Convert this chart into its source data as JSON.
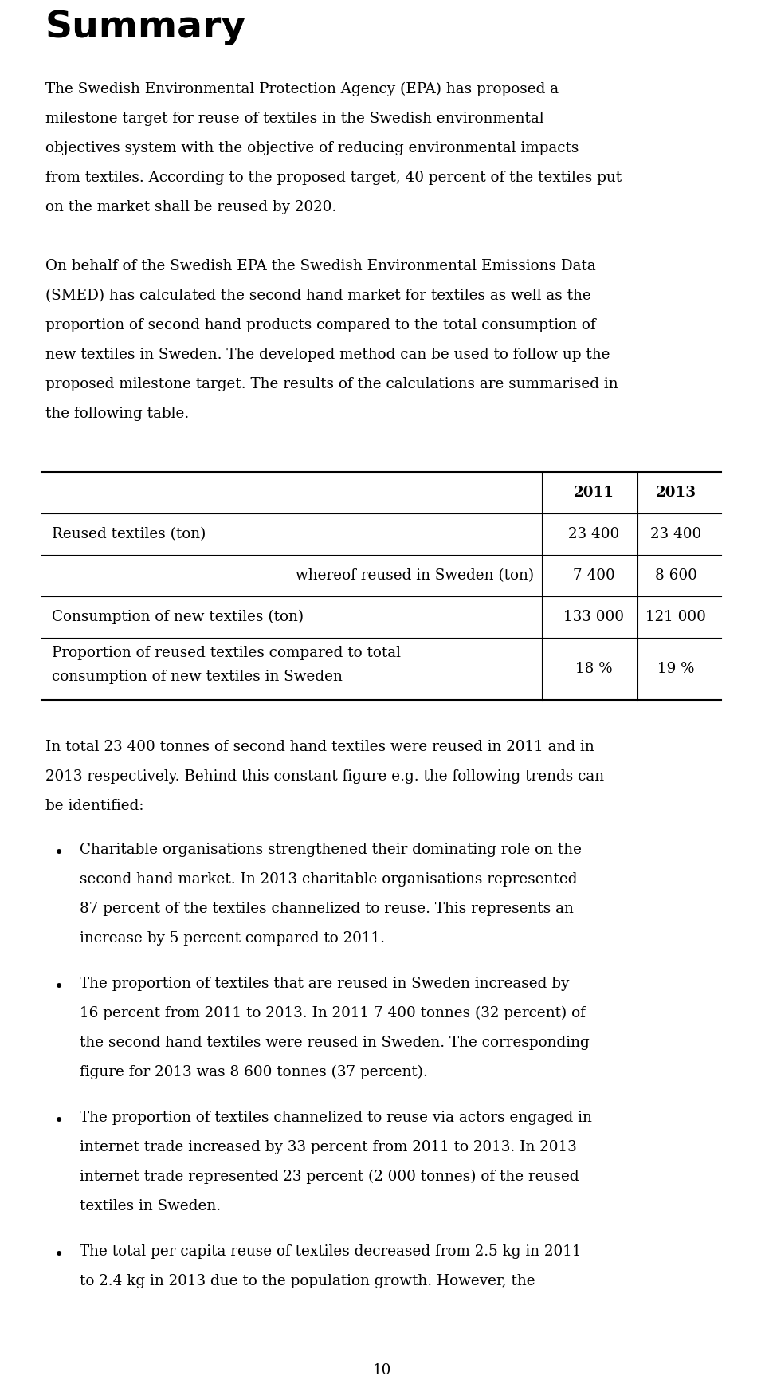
{
  "title": "Summary",
  "para1_lines": [
    "The Swedish Environmental Protection Agency (EPA) has proposed a",
    "milestone target for reuse of textiles in the Swedish environmental",
    "objectives system with the objective of reducing environmental impacts",
    "from textiles. According to the proposed target, 40 percent of the textiles put",
    "on the market shall be reused by 2020."
  ],
  "para2_lines": [
    "On behalf of the Swedish EPA the Swedish Environmental Emissions Data",
    "(SMED) has calculated the second hand market for textiles as well as the",
    "proportion of second hand products compared to the total consumption of",
    "new textiles in Sweden. The developed method can be used to follow up the",
    "proposed milestone target. The results of the calculations are summarised in",
    "the following table."
  ],
  "table_col2_header": "2011",
  "table_col3_header": "2013",
  "table_row1": [
    "Reused textiles (ton)",
    "23 400",
    "23 400"
  ],
  "table_row2_label": "whereof reused in Sweden (ton)",
  "table_row2_vals": [
    "7 400",
    "8 600"
  ],
  "table_row3": [
    "Consumption of new textiles (ton)",
    "133 000",
    "121 000"
  ],
  "table_row4_lines": [
    "Proportion of reused textiles compared to total",
    "consumption of new textiles in Sweden"
  ],
  "table_row4_vals": [
    "18 %",
    "19 %"
  ],
  "para3_lines": [
    "In total 23 400 tonnes of second hand textiles were reused in 2011 and in",
    "2013 respectively. Behind this constant figure e.g. the following trends can",
    "be identified:"
  ],
  "bullets": [
    [
      "Charitable organisations strengthened their dominating role on the",
      "second hand market. In 2013 charitable organisations represented",
      "87 percent of the textiles channelized to reuse. This represents an",
      "increase by 5 percent compared to 2011."
    ],
    [
      "The proportion of textiles that are reused in Sweden increased by",
      "16 percent from 2011 to 2013. In 2011 7 400 tonnes (32 percent) of",
      "the second hand textiles were reused in Sweden. The corresponding",
      "figure for 2013 was 8 600 tonnes (37 percent)."
    ],
    [
      "The proportion of textiles channelized to reuse via actors engaged in",
      "internet trade increased by 33 percent from 2011 to 2013. In 2013",
      "internet trade represented 23 percent (2 000 tonnes) of the reused",
      "textiles in Sweden."
    ],
    [
      "The total per capita reuse of textiles decreased from 2.5 kg in 2011",
      "to 2.4 kg in 2013 due to the population growth. However, the"
    ]
  ],
  "page_number": "10",
  "bg_color": "#ffffff",
  "text_color": "#000000",
  "title_fontsize": 34,
  "body_fontsize": 13.2
}
